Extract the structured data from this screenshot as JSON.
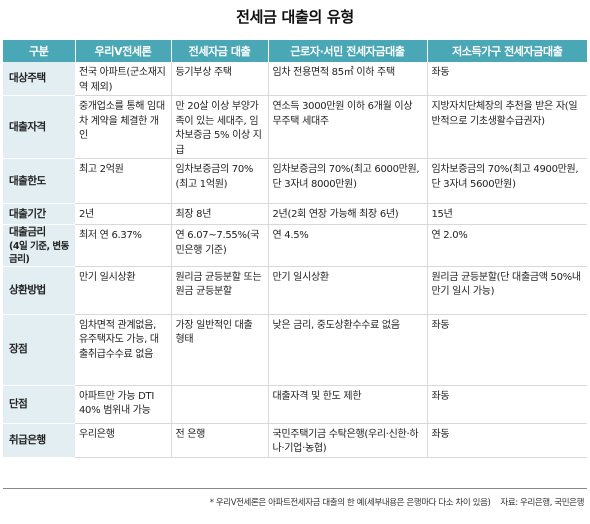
{
  "title": "전세금 대출의 유형",
  "headers": [
    "구분",
    "우리V전세론",
    "전세자금 대출",
    "근로자·서민 전세자금대출",
    "저소득가구 전세자금대출"
  ],
  "rows": [
    {
      "label": "대상주택",
      "sub": "",
      "cells": [
        "전국 아파트(군소재지역 제외)",
        "등기부상 주택",
        "임차 전용면적 85㎡ 이하 주택",
        "좌동"
      ]
    },
    {
      "label": "대출자격",
      "sub": "",
      "cells": [
        "중개업소를 통해 임대차 계약을 체결한 개인",
        "만 20살 이상 부양가족이 있는 세대주, 임차보증금 5% 이상 지급",
        "연소득 3000만원 이하 6개월 이상 무주택 세대주",
        "지방자치단체장의 추천을 받은 자(일반적으로 기초생활수급권자)"
      ]
    },
    {
      "label": "대출한도",
      "sub": "",
      "cells": [
        "최고 2억원",
        "임차보증금의 70%(최고 1억원)",
        "임차보증금의 70%(최고 6000만원, 단 3자녀 8000만원)",
        "임차보증금의 70%(최고 4900만원, 단 3자녀 5600만원)"
      ]
    },
    {
      "label": "대출기간",
      "sub": "",
      "cells": [
        "2년",
        "최장 8년",
        "2년(2회 연장 가능해 최장 6년)",
        "15년"
      ]
    },
    {
      "label": "대출금리",
      "sub": "(4일 기준, 변동금리)",
      "cells": [
        "최저 연 6.37%",
        "연 6.07~7.55%(국민은행 기준)",
        "연 4.5%",
        "연 2.0%"
      ]
    },
    {
      "label": "상환방법",
      "sub": "",
      "cells": [
        "만기 일시상환",
        "원리금 균등분할 또는 원금 균등분할",
        "만기 일시상환",
        "원리금 균등분할(단 대출금액 50%내 만기 일시 가능)"
      ]
    },
    {
      "label": "장점",
      "sub": "",
      "cells": [
        "임차면적 관계없음, 유주택자도 가능, 대출취급수수료 없음",
        "가장 일반적인 대출 형태",
        "낮은 금리, 중도상환수수료 없음",
        "좌동"
      ]
    },
    {
      "label": "단점",
      "sub": "",
      "cells": [
        "아파트만 가능 DTI 40% 범위내 가능",
        "",
        "대출자격 및 한도 제한",
        "좌동"
      ]
    },
    {
      "label": "취급은행",
      "sub": "",
      "cells": [
        "우리은행",
        "전 은행",
        "국민주택기금 수탁은행(우리·신한·하나·기업·농협)",
        "좌동"
      ]
    }
  ],
  "footnote": "* 우리V전세론은 아파트전세자금 대출의 한 예(세부내용은 은행마다 다소 차이 있음)",
  "source": "자료: 우리은행, 국민은행"
}
